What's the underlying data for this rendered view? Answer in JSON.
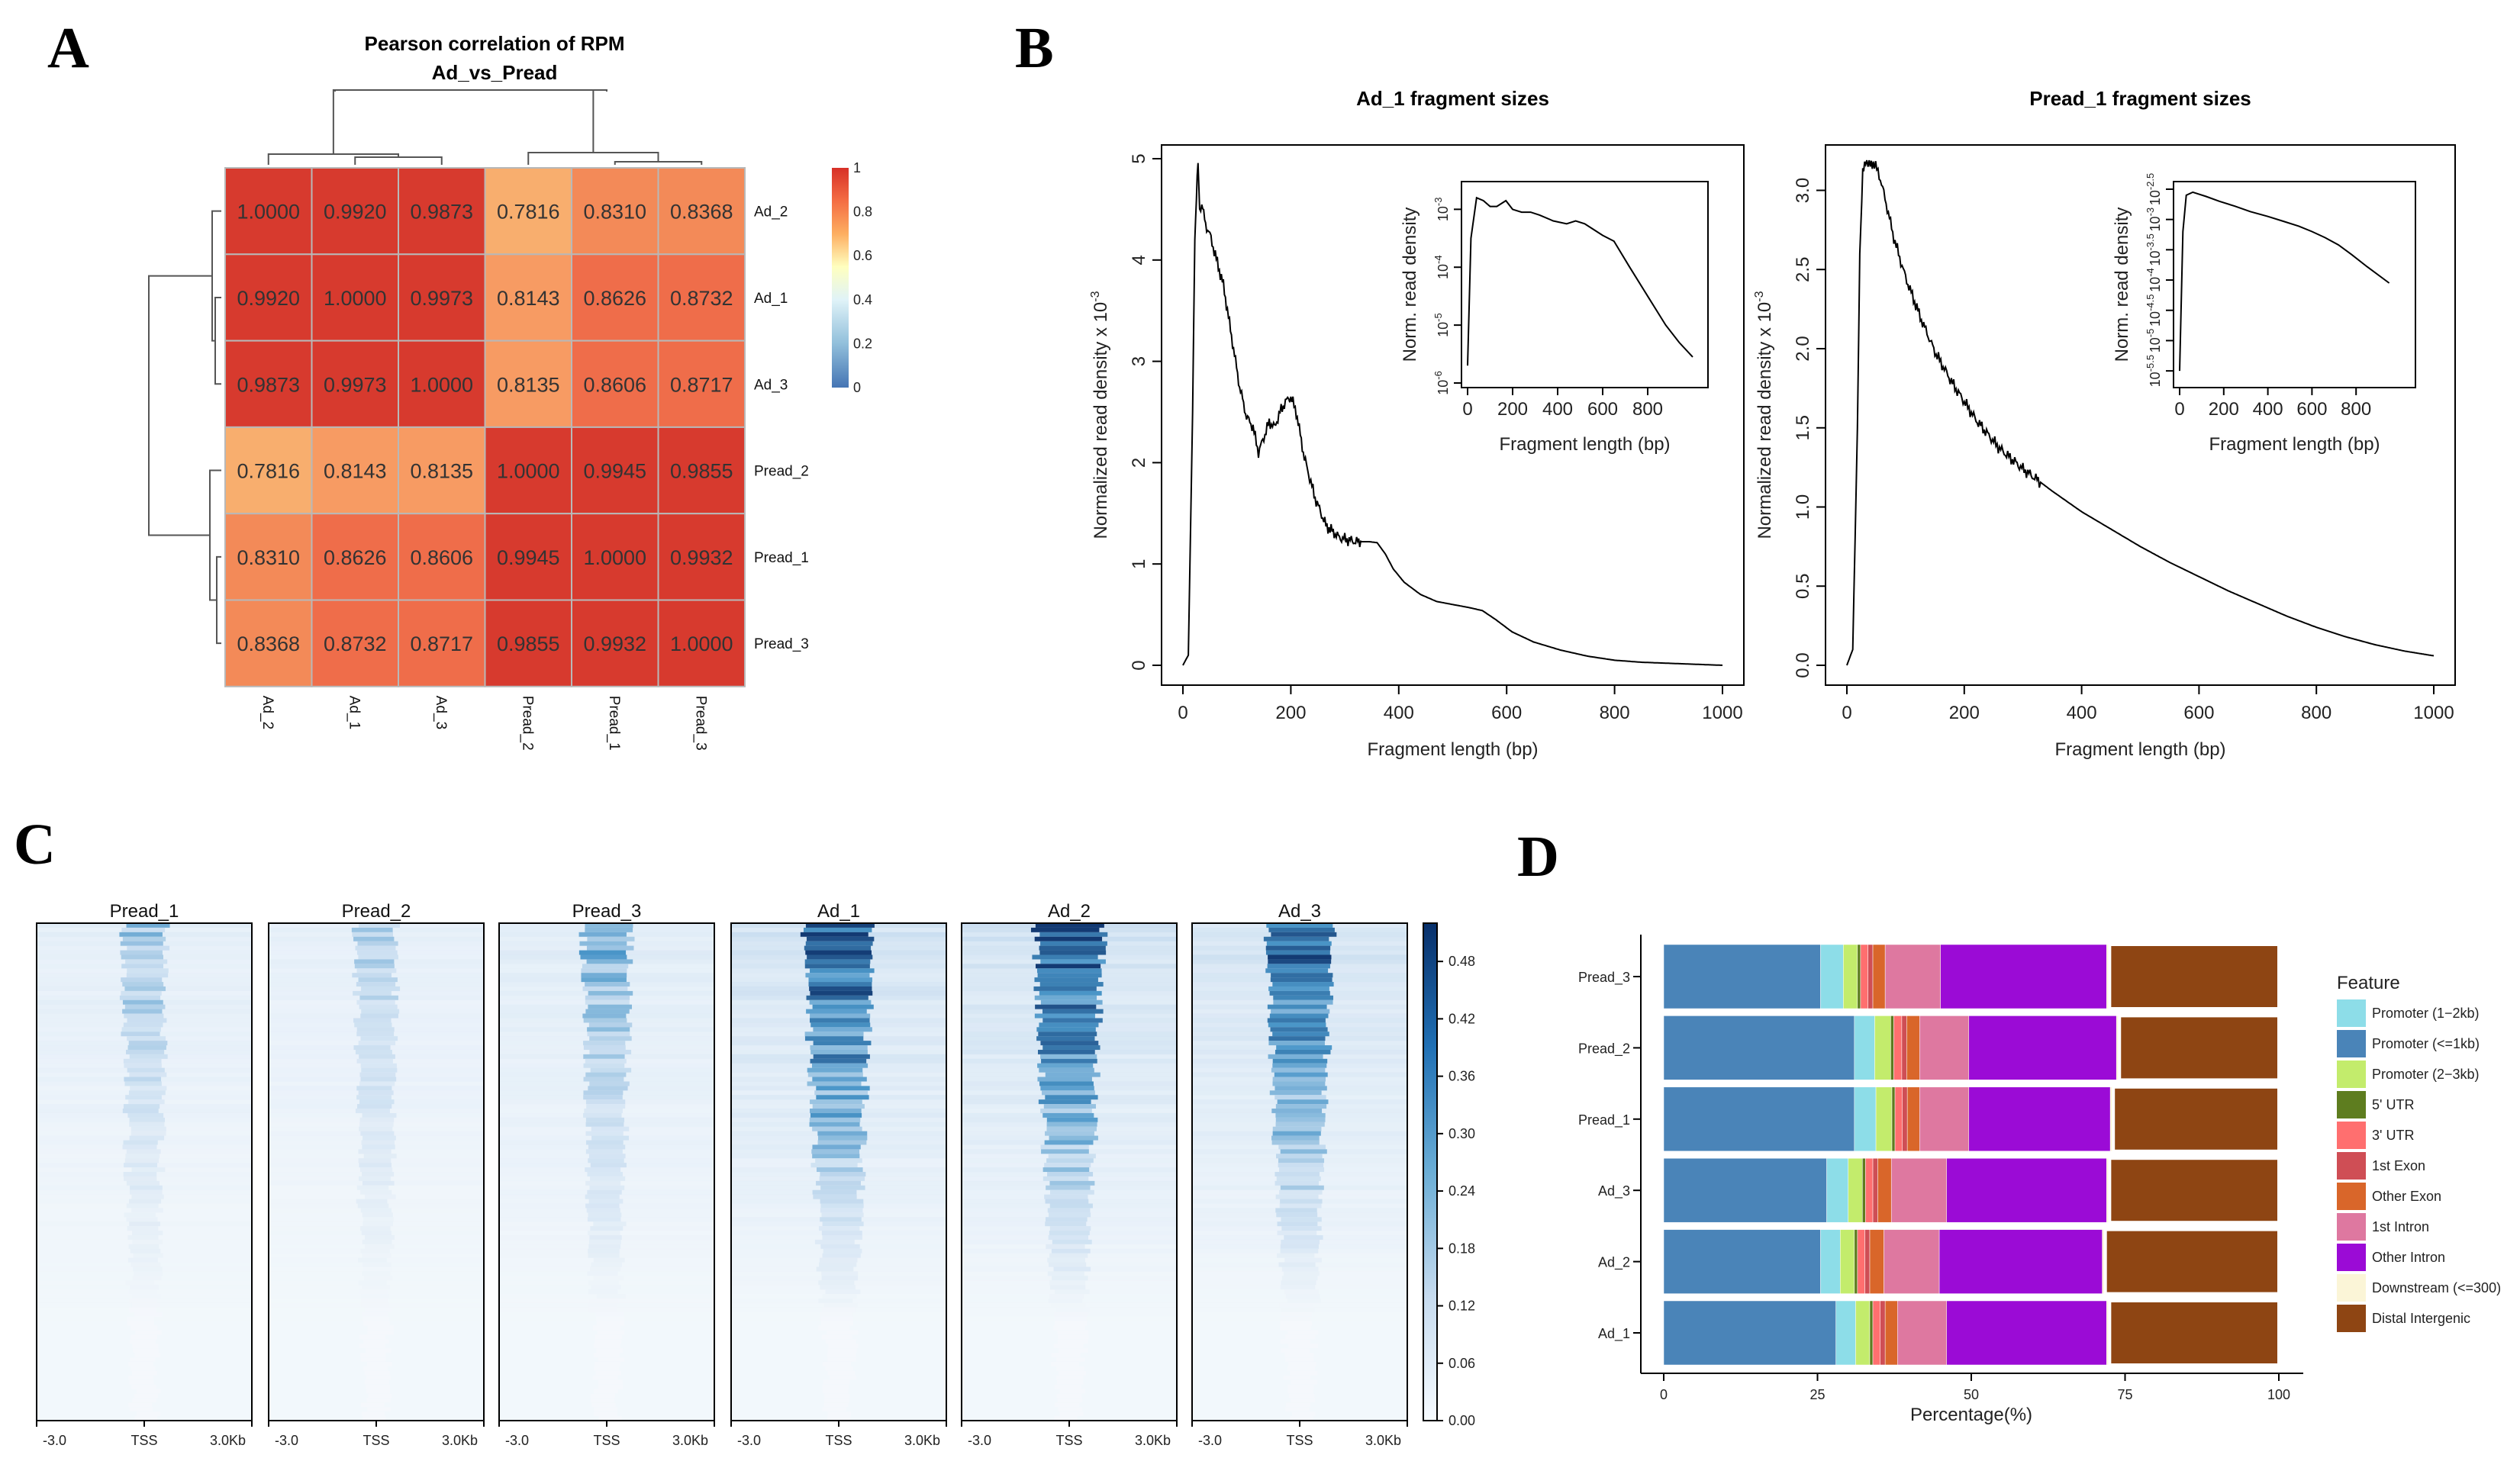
{
  "panels": {
    "a": "A",
    "b": "B",
    "c": "C",
    "d": "D"
  },
  "colors": {
    "heat_low": "#4575b4",
    "heat_mid": "#ffffbf",
    "heat_high": "#d73027",
    "profile_line": "#000000",
    "profile_light": "#f4f8fc",
    "profile_dark": "#08306b",
    "promoter_1_2kb": "#8ddde8",
    "promoter_le1kb": "#4a84b8",
    "promoter_2_3kb": "#c3ec6c",
    "utr5": "#5e7d1f",
    "utr3": "#ff6f6f",
    "exon1": "#cf4e55",
    "other_exon": "#d9662a",
    "intron1": "#de78a0",
    "other_intron": "#9b0bd6",
    "downstream": "#fbf5d7",
    "distal": "#8e4513"
  },
  "chart_data": [
    {
      "id": "A",
      "type": "heatmap",
      "title": "Pearson correlation of RPM",
      "subtitle": "Ad_vs_Pread",
      "rows": [
        "Ad_2",
        "Ad_1",
        "Ad_3",
        "Pread_2",
        "Pread_1",
        "Pread_3"
      ],
      "cols": [
        "Ad_2",
        "Ad_1",
        "Ad_3",
        "Pread_2",
        "Pread_1",
        "Pread_3"
      ],
      "values": [
        [
          "1.0000",
          "0.9920",
          "0.9873",
          "0.7816",
          "0.8310",
          "0.8368"
        ],
        [
          "0.9920",
          "1.0000",
          "0.9973",
          "0.8143",
          "0.8626",
          "0.8732"
        ],
        [
          "0.9873",
          "0.9973",
          "1.0000",
          "0.8135",
          "0.8606",
          "0.8717"
        ],
        [
          "0.7816",
          "0.8143",
          "0.8135",
          "1.0000",
          "0.9945",
          "0.9855"
        ],
        [
          "0.8310",
          "0.8626",
          "0.8606",
          "0.9945",
          "1.0000",
          "0.9932"
        ],
        [
          "0.8368",
          "0.8732",
          "0.8717",
          "0.9855",
          "0.9932",
          "1.0000"
        ]
      ],
      "colorbar_ticks": [
        "1",
        "0.8",
        "0.6",
        "0.4",
        "0.2",
        "0"
      ],
      "colorbar_range": [
        0,
        1
      ]
    },
    {
      "id": "B1",
      "type": "line",
      "title": "Ad_1 fragment sizes",
      "xlabel": "Fragment length (bp)",
      "ylabel": "Normalized read density x 10",
      "ylabel_exp": "-3",
      "xlim": [
        0,
        1000
      ],
      "ylim": [
        0,
        5
      ],
      "xticks": [
        "0",
        "200",
        "400",
        "600",
        "800",
        "1000"
      ],
      "yticks": [
        "0",
        "1",
        "2",
        "3",
        "4",
        "5"
      ],
      "x": [
        0,
        10,
        18,
        22,
        25,
        28,
        31,
        35,
        42,
        50,
        60,
        75,
        90,
        105,
        118,
        130,
        140,
        150,
        160,
        170,
        180,
        190,
        200,
        210,
        225,
        245,
        265,
        290,
        320,
        345,
        360,
        375,
        390,
        410,
        440,
        470,
        500,
        530,
        555,
        580,
        610,
        650,
        700,
        750,
        800,
        850,
        900,
        950,
        1000
      ],
      "y": [
        0.0,
        0.1,
        2.5,
        4.2,
        4.6,
        4.95,
        4.5,
        4.55,
        4.35,
        4.25,
        4.05,
        3.75,
        3.25,
        2.75,
        2.45,
        2.35,
        2.1,
        2.25,
        2.4,
        2.35,
        2.5,
        2.6,
        2.65,
        2.5,
        2.05,
        1.65,
        1.38,
        1.26,
        1.22,
        1.22,
        1.21,
        1.1,
        0.95,
        0.82,
        0.7,
        0.63,
        0.6,
        0.57,
        0.54,
        0.45,
        0.33,
        0.23,
        0.15,
        0.09,
        0.05,
        0.03,
        0.02,
        0.01,
        0.0
      ],
      "inset": {
        "ylabel": "Norm. read density",
        "xlabel": "Fragment length (bp)",
        "xticks": [
          "0",
          "200",
          "400",
          "600",
          "800"
        ],
        "ytick_exps": [
          "-6",
          "-5",
          "-4",
          "-3"
        ],
        "ylog_range": [
          -6,
          -2.6
        ],
        "xlim": [
          0,
          1000
        ],
        "log_y": [
          -5.7,
          -3.5,
          -2.8,
          -2.85,
          -2.95,
          -2.95,
          -2.85,
          -3.0,
          -3.05,
          -3.05,
          -3.1,
          -3.2,
          -3.25,
          -3.2,
          -3.25,
          -3.35,
          -3.45,
          -3.55,
          -4.0,
          -4.5,
          -5.0,
          -5.3,
          -5.55
        ],
        "x": [
          0,
          15,
          40,
          70,
          100,
          130,
          170,
          200,
          240,
          280,
          320,
          380,
          440,
          480,
          520,
          560,
          600,
          650,
          720,
          800,
          880,
          940,
          1000
        ]
      }
    },
    {
      "id": "B2",
      "type": "line",
      "title": "Pread_1 fragment sizes",
      "xlabel": "Fragment length (bp)",
      "ylabel": "Normalized read density x 10",
      "ylabel_exp": "-3",
      "xlim": [
        0,
        1000
      ],
      "ylim": [
        0,
        3.2
      ],
      "xticks": [
        "0",
        "200",
        "400",
        "600",
        "800",
        "1000"
      ],
      "yticks": [
        "0.0",
        "0.5",
        "1.0",
        "1.5",
        "2.0",
        "2.5",
        "3.0"
      ],
      "x": [
        0,
        10,
        18,
        22,
        27,
        32,
        38,
        45,
        55,
        65,
        80,
        100,
        125,
        150,
        180,
        220,
        260,
        300,
        350,
        400,
        450,
        500,
        550,
        600,
        650,
        700,
        750,
        800,
        850,
        900,
        950,
        1000
      ],
      "y": [
        0.0,
        0.1,
        1.5,
        2.6,
        3.1,
        3.2,
        3.15,
        3.18,
        3.1,
        2.95,
        2.7,
        2.45,
        2.2,
        1.98,
        1.78,
        1.55,
        1.37,
        1.24,
        1.1,
        0.97,
        0.86,
        0.75,
        0.65,
        0.56,
        0.47,
        0.39,
        0.31,
        0.24,
        0.18,
        0.13,
        0.09,
        0.06
      ],
      "inset": {
        "ylabel": "Norm. read density",
        "xlabel": "Fragment length (bp)",
        "xticks": [
          "0",
          "200",
          "400",
          "600",
          "800"
        ],
        "ytick_exps": [
          "-5.5",
          "-5",
          "-4.5",
          "-4",
          "-3.5",
          "-3",
          "-2.5"
        ],
        "ylog_range": [
          -5.7,
          -2.45
        ],
        "xlim": [
          0,
          1000
        ],
        "log_y": [
          -5.5,
          -3.2,
          -2.6,
          -2.55,
          -2.62,
          -2.7,
          -2.78,
          -2.87,
          -2.95,
          -3.03,
          -3.11,
          -3.2,
          -3.3,
          -3.42,
          -3.58,
          -3.78,
          -4.05
        ],
        "x": [
          0,
          15,
          30,
          60,
          120,
          180,
          250,
          320,
          400,
          470,
          540,
          600,
          660,
          720,
          780,
          850,
          950
        ]
      }
    },
    {
      "id": "C",
      "type": "heatmap",
      "samples": [
        "Pread_1",
        "Pread_2",
        "Pread_3",
        "Ad_1",
        "Ad_2",
        "Ad_3"
      ],
      "intensity": [
        0.45,
        0.4,
        0.55,
        1.0,
        1.0,
        0.95
      ],
      "xticks": [
        "-3.0",
        "TSS",
        "3.0Kb"
      ],
      "colorbar_ticks": [
        "0.48",
        "0.42",
        "0.36",
        "0.30",
        "0.24",
        "0.18",
        "0.12",
        "0.06",
        "0.00"
      ],
      "colorbar_range": [
        0,
        0.52
      ]
    },
    {
      "id": "D",
      "type": "bar",
      "orientation": "horizontal",
      "stacked": true,
      "categories": [
        "Pread_3",
        "Pread_2",
        "Pread_1",
        "Ad_3",
        "Ad_2",
        "Ad_1"
      ],
      "xlabel": "Percentage(%)",
      "xticks": [
        "0",
        "25",
        "50",
        "75",
        "100"
      ],
      "xlim": [
        0,
        100
      ],
      "legend_title": "Feature",
      "series": [
        {
          "name": "Promoter (<=1kb)",
          "color": "#4a84b8",
          "values": [
            25.5,
            31.0,
            31.0,
            26.5,
            25.5,
            28.0
          ]
        },
        {
          "name": "Promoter (1−2kb)",
          "color": "#8ddde8",
          "values": [
            3.7,
            3.3,
            3.5,
            3.5,
            3.2,
            3.2
          ]
        },
        {
          "name": "Promoter (2−3kb)",
          "color": "#c3ec6c",
          "values": [
            2.3,
            2.6,
            2.6,
            2.3,
            2.3,
            2.3
          ]
        },
        {
          "name": "5' UTR",
          "color": "#5e7d1f",
          "values": [
            0.5,
            0.5,
            0.5,
            0.5,
            0.5,
            0.5
          ]
        },
        {
          "name": "3' UTR",
          "color": "#ff6f6f",
          "values": [
            1.2,
            1.3,
            1.2,
            1.2,
            1.2,
            1.2
          ]
        },
        {
          "name": "1st Exon",
          "color": "#cf4e55",
          "values": [
            0.8,
            0.8,
            0.8,
            0.8,
            0.8,
            0.8
          ]
        },
        {
          "name": "Other Exon",
          "color": "#d9662a",
          "values": [
            2.0,
            2.1,
            2.0,
            2.2,
            2.3,
            2.0
          ]
        },
        {
          "name": "1st Intron",
          "color": "#de78a0",
          "values": [
            9.0,
            8.0,
            8.0,
            9.0,
            9.0,
            8.0
          ]
        },
        {
          "name": "Other Intron",
          "color": "#9b0bd6",
          "values": [
            27.0,
            24.0,
            23.0,
            26.0,
            26.5,
            26.0
          ]
        },
        {
          "name": "Downstream (<=300)",
          "color": "#fbf5d7",
          "values": [
            0.5,
            0.5,
            0.5,
            0.5,
            0.5,
            0.5
          ]
        },
        {
          "name": "Distal Intergenic",
          "color": "#8e4513",
          "values": [
            27.5,
            25.9,
            26.9,
            27.5,
            28.2,
            27.5
          ]
        }
      ]
    }
  ]
}
